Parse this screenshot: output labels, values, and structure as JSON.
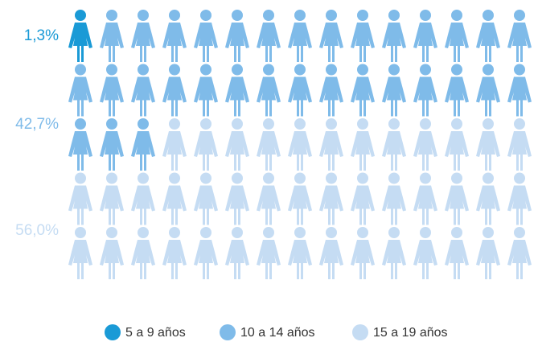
{
  "chart_data": {
    "type": "pictogram",
    "series": [
      {
        "name": "5 a 9 años",
        "color": "#1a9ad6",
        "values": [
          1.3
        ],
        "value_labels": [
          "1,3%"
        ]
      },
      {
        "name": "10 a 14 años",
        "color": "#7fbbe9",
        "values": [
          42.7
        ],
        "value_labels": [
          "42,7%"
        ]
      },
      {
        "name": "15 a 19 años",
        "color": "#c5dcf3",
        "values": [
          56.0
        ],
        "value_labels": [
          "56,0%"
        ]
      }
    ]
  }
}
